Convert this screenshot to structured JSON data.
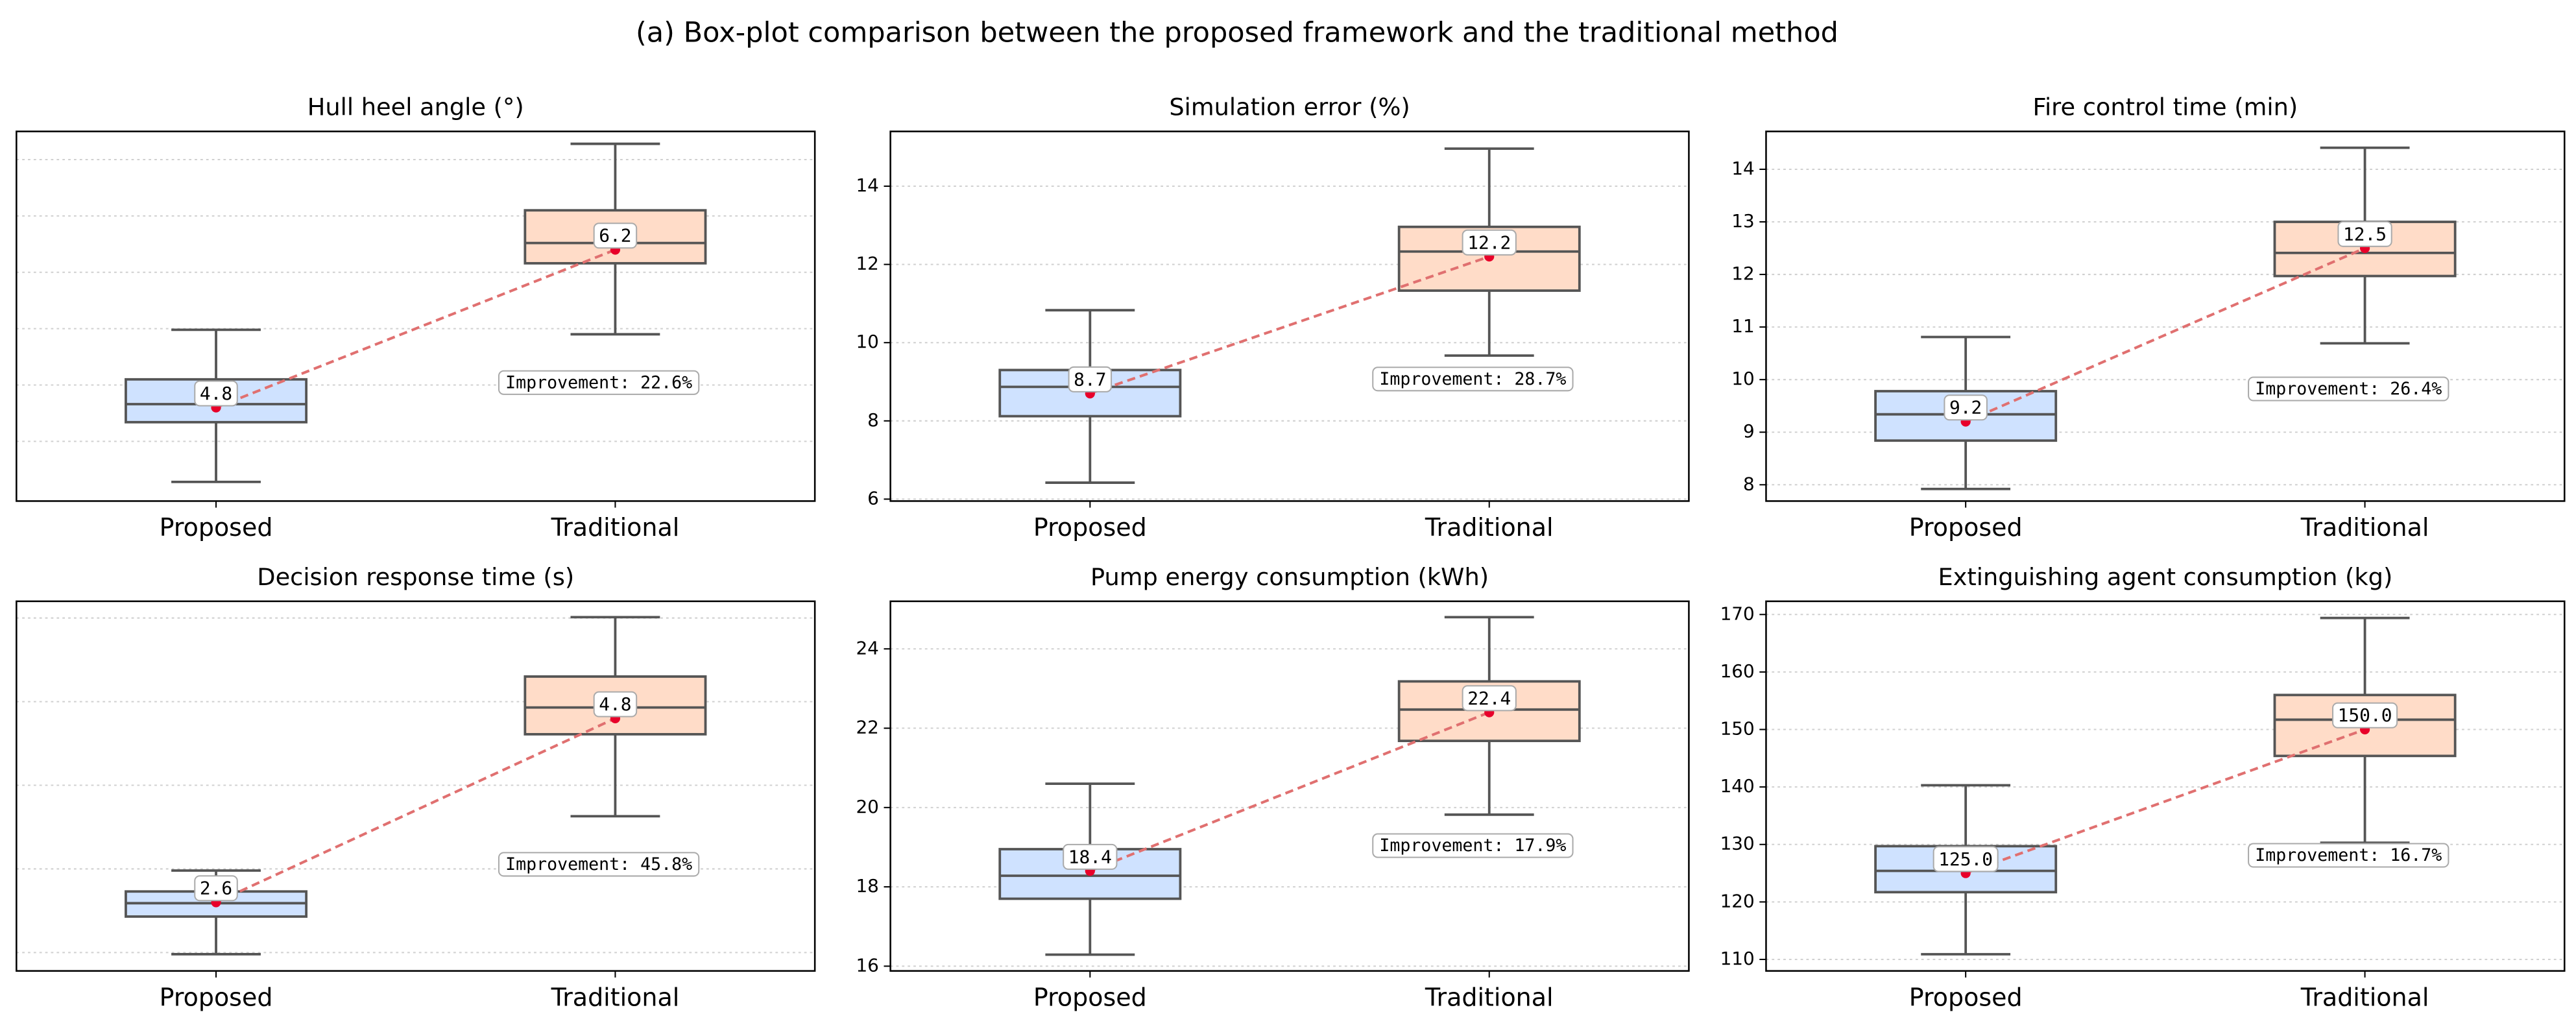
{
  "chart_data": {
    "title": "(a) Box-plot comparison between the proposed framework and the traditional method",
    "charts": [
      {
        "type": "box",
        "title": "Hull heel angle (°)",
        "categories": [
          "Proposed",
          "Traditional"
        ],
        "ylim": [
          3.97,
          7.25
        ],
        "yticks": [
          4.5,
          5.0,
          5.5,
          6.0,
          6.5,
          7.0
        ],
        "show_ytick_labels": false,
        "grid": true,
        "annotation": "Improvement: 22.6%",
        "boxes": [
          {
            "color": "#cfe2ff",
            "whisker_low": 4.14,
            "q1": 4.67,
            "median": 4.83,
            "q3": 5.05,
            "whisker_high": 5.49,
            "mean": 4.8
          },
          {
            "color": "#ffdcc8",
            "whisker_low": 5.45,
            "q1": 6.08,
            "median": 6.26,
            "q3": 6.55,
            "whisker_high": 7.14,
            "mean": 6.2
          }
        ]
      },
      {
        "type": "box",
        "title": "Simulation error (%)",
        "categories": [
          "Proposed",
          "Traditional"
        ],
        "ylim": [
          5.95,
          15.4
        ],
        "yticks": [
          6,
          8,
          10,
          12,
          14
        ],
        "show_ytick_labels": true,
        "grid": true,
        "annotation": "Improvement: 28.7%",
        "boxes": [
          {
            "color": "#cfe2ff",
            "whisker_low": 6.42,
            "q1": 8.12,
            "median": 8.87,
            "q3": 9.3,
            "whisker_high": 10.83,
            "mean": 8.7
          },
          {
            "color": "#ffdcc8",
            "whisker_low": 9.67,
            "q1": 11.33,
            "median": 12.33,
            "q3": 12.96,
            "whisker_high": 14.96,
            "mean": 12.2
          }
        ]
      },
      {
        "type": "box",
        "title": "Fire control time (min)",
        "categories": [
          "Proposed",
          "Traditional"
        ],
        "ylim": [
          7.69,
          14.72
        ],
        "yticks": [
          8,
          9,
          10,
          11,
          12,
          13,
          14
        ],
        "show_ytick_labels": true,
        "grid": true,
        "annotation": "Improvement: 26.4%",
        "boxes": [
          {
            "color": "#cfe2ff",
            "whisker_low": 7.92,
            "q1": 8.84,
            "median": 9.34,
            "q3": 9.78,
            "whisker_high": 10.81,
            "mean": 9.2
          },
          {
            "color": "#ffdcc8",
            "whisker_low": 10.69,
            "q1": 11.97,
            "median": 12.41,
            "q3": 13.0,
            "whisker_high": 14.41,
            "mean": 12.5
          }
        ]
      },
      {
        "type": "box",
        "title": "Decision response time (s)",
        "categories": [
          "Proposed",
          "Traditional"
        ],
        "ylim": [
          1.78,
          6.2
        ],
        "yticks": [
          2,
          3,
          4,
          5,
          6
        ],
        "show_ytick_labels": false,
        "grid": true,
        "annotation": "Improvement: 45.8%",
        "boxes": [
          {
            "color": "#cfe2ff",
            "whisker_low": 1.98,
            "q1": 2.43,
            "median": 2.59,
            "q3": 2.73,
            "whisker_high": 2.98,
            "mean": 2.6
          },
          {
            "color": "#ffdcc8",
            "whisker_low": 3.63,
            "q1": 4.61,
            "median": 4.93,
            "q3": 5.3,
            "whisker_high": 6.01,
            "mean": 4.8
          }
        ]
      },
      {
        "type": "box",
        "title": "Pump energy consumption (kWh)",
        "categories": [
          "Proposed",
          "Traditional"
        ],
        "ylim": [
          15.88,
          25.2
        ],
        "yticks": [
          16,
          18,
          20,
          22,
          24
        ],
        "show_ytick_labels": true,
        "grid": true,
        "annotation": "Improvement: 17.9%",
        "boxes": [
          {
            "color": "#cfe2ff",
            "whisker_low": 16.29,
            "q1": 17.7,
            "median": 18.28,
            "q3": 18.95,
            "whisker_high": 20.6,
            "mean": 18.4
          },
          {
            "color": "#ffdcc8",
            "whisker_low": 19.82,
            "q1": 21.68,
            "median": 22.47,
            "q3": 23.18,
            "whisker_high": 24.8,
            "mean": 22.4
          }
        ]
      },
      {
        "type": "box",
        "title": "Extinguishing agent consumption (kg)",
        "categories": [
          "Proposed",
          "Traditional"
        ],
        "ylim": [
          108,
          172.3
        ],
        "yticks": [
          110,
          120,
          130,
          140,
          150,
          160,
          170
        ],
        "show_ytick_labels": true,
        "grid": true,
        "annotation": "Improvement: 16.7%",
        "boxes": [
          {
            "color": "#cfe2ff",
            "whisker_low": 110.9,
            "q1": 121.7,
            "median": 125.4,
            "q3": 129.7,
            "whisker_high": 140.3,
            "mean": 125,
            "mean_label": "125.0"
          },
          {
            "color": "#ffdcc8",
            "whisker_low": 130.3,
            "q1": 145.4,
            "median": 151.7,
            "q3": 156,
            "whisker_high": 169.4,
            "mean": 150,
            "mean_label": "150.0"
          }
        ]
      }
    ]
  }
}
